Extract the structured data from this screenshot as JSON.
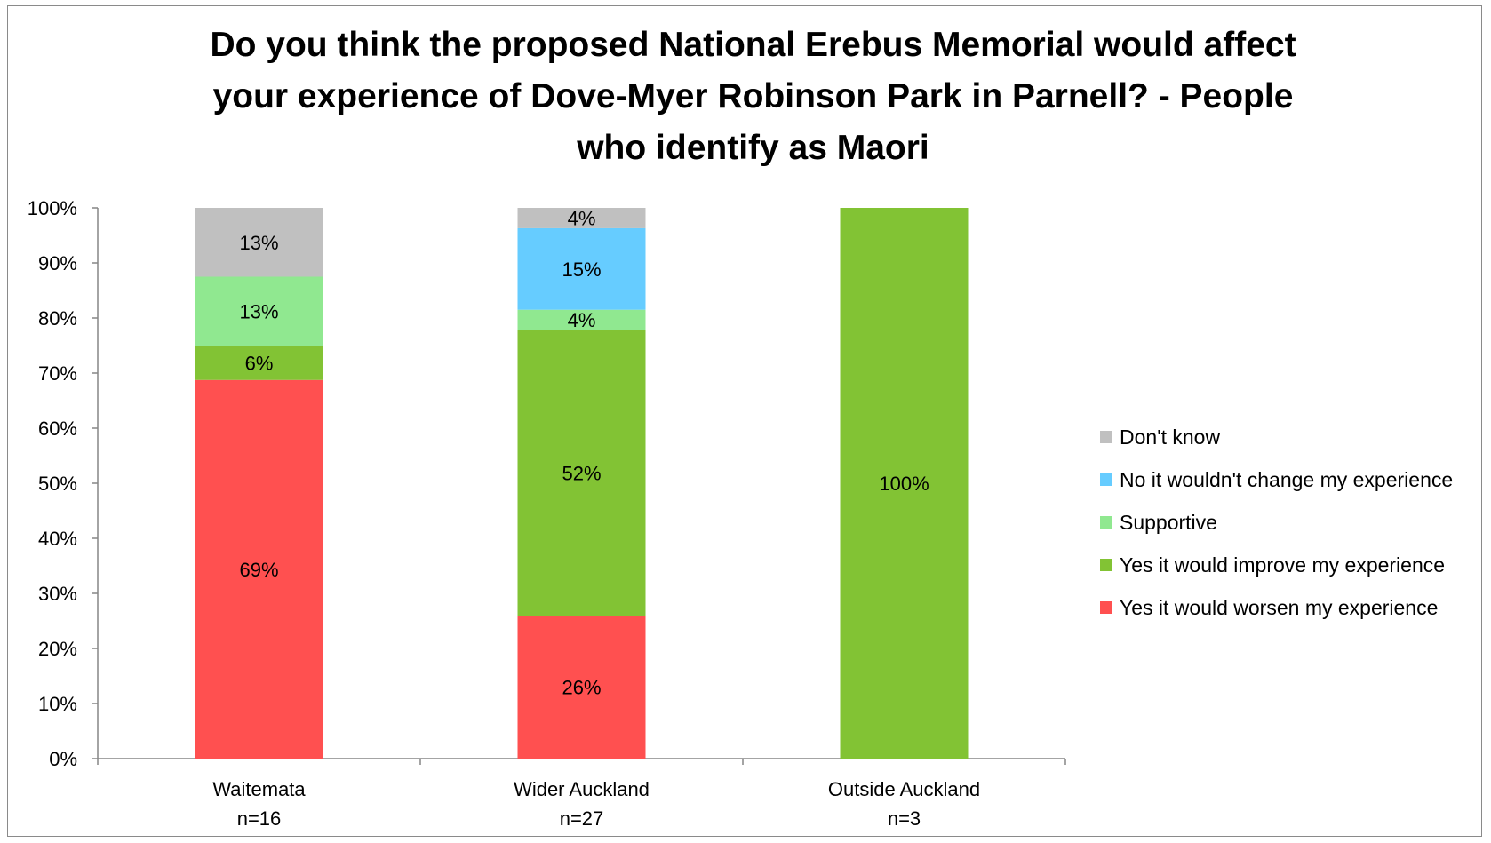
{
  "chart_data": {
    "type": "bar",
    "stacked": true,
    "title": "Do you think the proposed National Erebus Memorial would affect\nyour experience of Dove-Myer Robinson Park in Parnell? - People\nwho identify as Maori",
    "categories": [
      {
        "name": "Waitemata",
        "sub": "n=16"
      },
      {
        "name": "Wider Auckland",
        "sub": "n=27"
      },
      {
        "name": "Outside Auckland",
        "sub": "n=3"
      }
    ],
    "series": [
      {
        "name": "Yes it would worsen my experience",
        "color": "#ff5050",
        "values": [
          68.75,
          25.9,
          0
        ],
        "labels": [
          "69%",
          "26%",
          ""
        ]
      },
      {
        "name": "Yes it would improve my experience",
        "color": "#82c334",
        "values": [
          6.25,
          51.9,
          100
        ],
        "labels": [
          "6%",
          "52%",
          "100%"
        ]
      },
      {
        "name": "Supportive",
        "color": "#90e890",
        "values": [
          12.5,
          3.7,
          0
        ],
        "labels": [
          "13%",
          "4%",
          ""
        ]
      },
      {
        "name": "No it wouldn't change my experience",
        "color": "#66ccff",
        "values": [
          0,
          14.8,
          0
        ],
        "labels": [
          "",
          "15%",
          ""
        ]
      },
      {
        "name": "Don't know",
        "color": "#c0c0c0",
        "values": [
          12.5,
          3.7,
          0
        ],
        "labels": [
          "13%",
          "4%",
          ""
        ]
      }
    ],
    "y_ticks": [
      "0%",
      "10%",
      "20%",
      "30%",
      "40%",
      "50%",
      "60%",
      "70%",
      "80%",
      "90%",
      "100%"
    ],
    "ylim": [
      0,
      100
    ],
    "grid": false,
    "legend_position": "right",
    "legend_order": [
      "Don't know",
      "No it wouldn't change my experience",
      "Supportive",
      "Yes it would improve my experience",
      "Yes it would worsen my experience"
    ]
  }
}
